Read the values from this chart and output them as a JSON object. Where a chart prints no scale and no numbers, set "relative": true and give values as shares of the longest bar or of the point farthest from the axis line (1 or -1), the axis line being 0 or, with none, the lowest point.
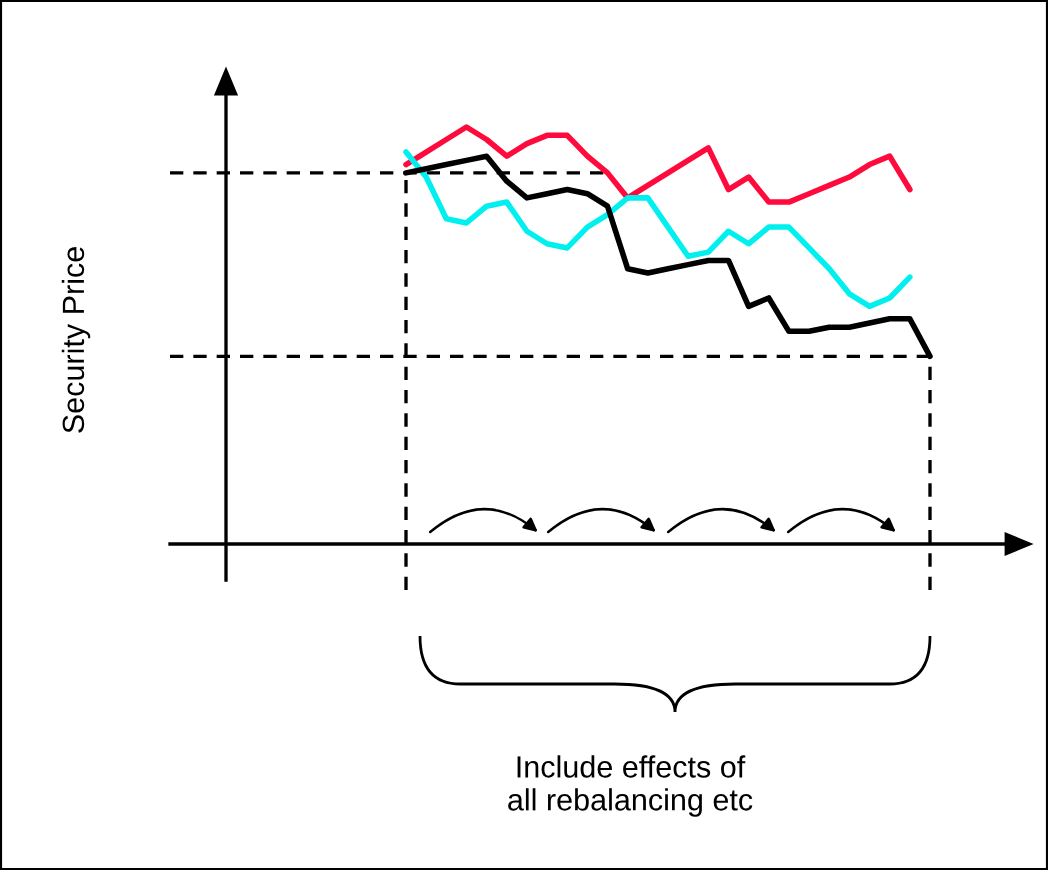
{
  "chart_data": {
    "type": "line",
    "relative": true,
    "categories": [
      null,
      null,
      null,
      null,
      null,
      null,
      null,
      null,
      null,
      null,
      null,
      null,
      null,
      null,
      null,
      null,
      null,
      null,
      null,
      null,
      null,
      null,
      null,
      null,
      null,
      null,
      null
    ],
    "series": [
      {
        "color": "#ff0a3c",
        "values": [
          0.91,
          0.94,
          0.97,
          1.0,
          0.97,
          0.93,
          0.96,
          0.98,
          0.98,
          0.93,
          0.89,
          0.83,
          0.86,
          0.89,
          0.92,
          0.95,
          0.85,
          0.88,
          0.82,
          0.82,
          0.84,
          0.86,
          0.88,
          0.91,
          0.93,
          0.85,
          null
        ]
      },
      {
        "color": "#00f0f0",
        "values": [
          0.94,
          0.88,
          0.78,
          0.77,
          0.81,
          0.82,
          0.75,
          0.72,
          0.71,
          0.76,
          0.79,
          0.83,
          0.83,
          0.76,
          0.69,
          0.7,
          0.75,
          0.72,
          0.76,
          0.76,
          0.71,
          0.66,
          0.6,
          0.57,
          0.59,
          0.64,
          null
        ]
      },
      {
        "color": "#000000",
        "values": [
          0.89,
          0.9,
          0.91,
          0.92,
          0.93,
          0.87,
          0.83,
          0.84,
          0.85,
          0.84,
          0.81,
          0.66,
          0.65,
          0.66,
          0.67,
          0.68,
          0.68,
          0.57,
          0.59,
          0.51,
          0.51,
          0.52,
          0.52,
          0.53,
          0.54,
          0.54,
          0.45
        ]
      }
    ],
    "ref_lines": [
      {
        "axis": "y",
        "value": 0.89,
        "line_style": "dashed",
        "color": "#000000"
      },
      {
        "axis": "y",
        "value": 0.45,
        "line_style": "dashed",
        "color": "#000000"
      }
    ],
    "annotations": [
      "Security Price",
      "Include effects of\nall rebalancing etc"
    ]
  }
}
